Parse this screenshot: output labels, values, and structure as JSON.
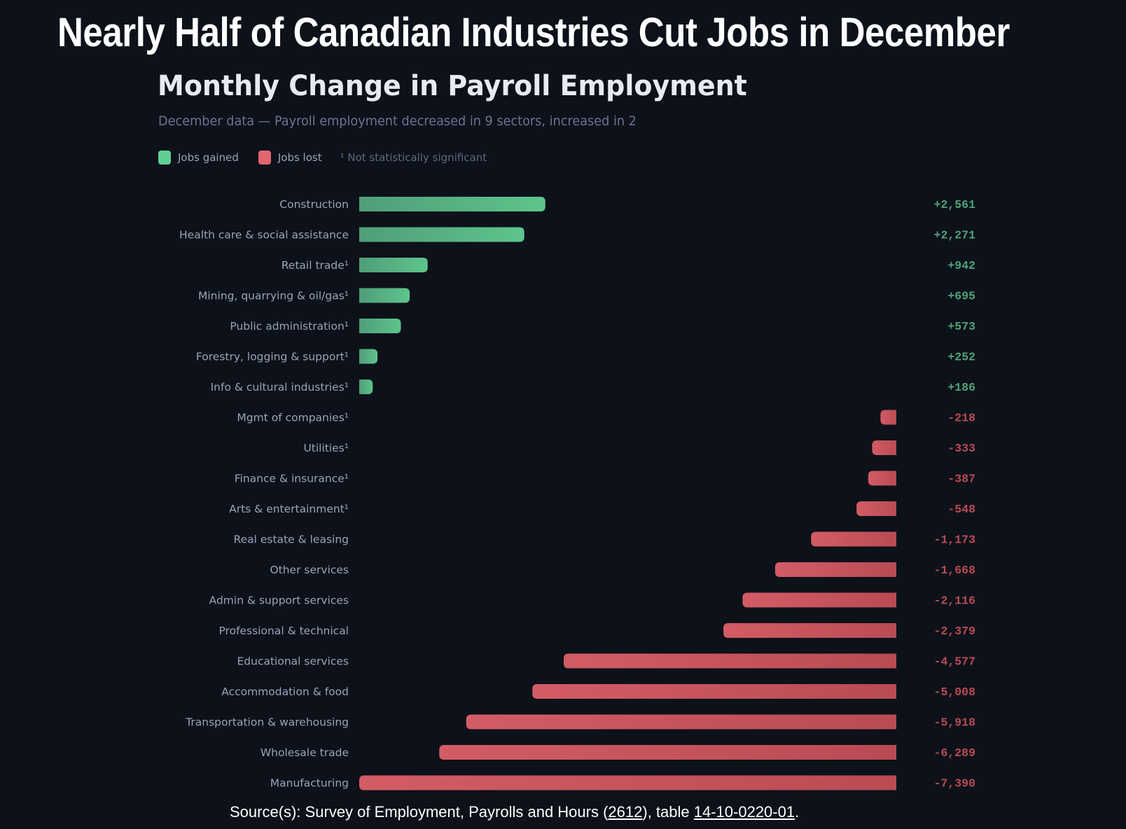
{
  "page": {
    "title": "Nearly Half of Canadian Industries Cut Jobs in December",
    "source": {
      "prefix": "Source(s): Survey of Employment, Payrolls and Hours (",
      "link1": "2612",
      "middle": "), table ",
      "link2": "14-10-0220-01",
      "suffix": "."
    }
  },
  "colors": {
    "background": "#0d111a",
    "gain_start": "#4f9e78",
    "gain_end": "#5ec48c",
    "loss_start": "#d35c65",
    "loss_end": "#b94b54",
    "gain_text": "#4fa378",
    "loss_text": "#b94b54",
    "legend_gain": "#5ecf95",
    "legend_loss": "#e06670"
  },
  "chart_data": {
    "type": "bar",
    "orientation": "horizontal",
    "title": "Monthly Change in Payroll Employment",
    "subtitle": "December data — Payroll employment decreased in 9 sectors, increased in 2",
    "xlabel": "",
    "ylabel": "",
    "grid": false,
    "legend": {
      "placement": "top-left",
      "entries": [
        {
          "label": "Jobs gained",
          "color": "#5ecf95"
        },
        {
          "label": "Jobs lost",
          "color": "#e06670"
        }
      ],
      "note": "¹ Not statistically significant"
    },
    "categories": [
      "Construction",
      "Health care & social assistance",
      "Retail trade¹",
      "Mining, quarrying & oil/gas¹",
      "Public administration¹",
      "Forestry, logging & support¹",
      "Info & cultural industries¹",
      "Mgmt of companies¹",
      "Utilities¹",
      "Finance & insurance¹",
      "Arts & entertainment¹",
      "Real estate & leasing",
      "Other services",
      "Admin & support services",
      "Professional & technical",
      "Educational services",
      "Accommodation & food",
      "Transportation & warehousing",
      "Wholesale trade",
      "Manufacturing"
    ],
    "values": [
      2561,
      2271,
      942,
      695,
      573,
      252,
      186,
      -218,
      -333,
      -387,
      -548,
      -1173,
      -1668,
      -2116,
      -2379,
      -4577,
      -5008,
      -5918,
      -6289,
      -7390
    ],
    "value_labels": [
      "+2,561",
      "+2,271",
      "+942",
      "+695",
      "+573",
      "+252",
      "+186",
      "-218",
      "-333",
      "-387",
      "-548",
      "-1,173",
      "-1,668",
      "-2,116",
      "-2,379",
      "-4,577",
      "-5,008",
      "-5,918",
      "-6,289",
      "-7,390"
    ],
    "xlim": [
      0,
      7390
    ]
  }
}
